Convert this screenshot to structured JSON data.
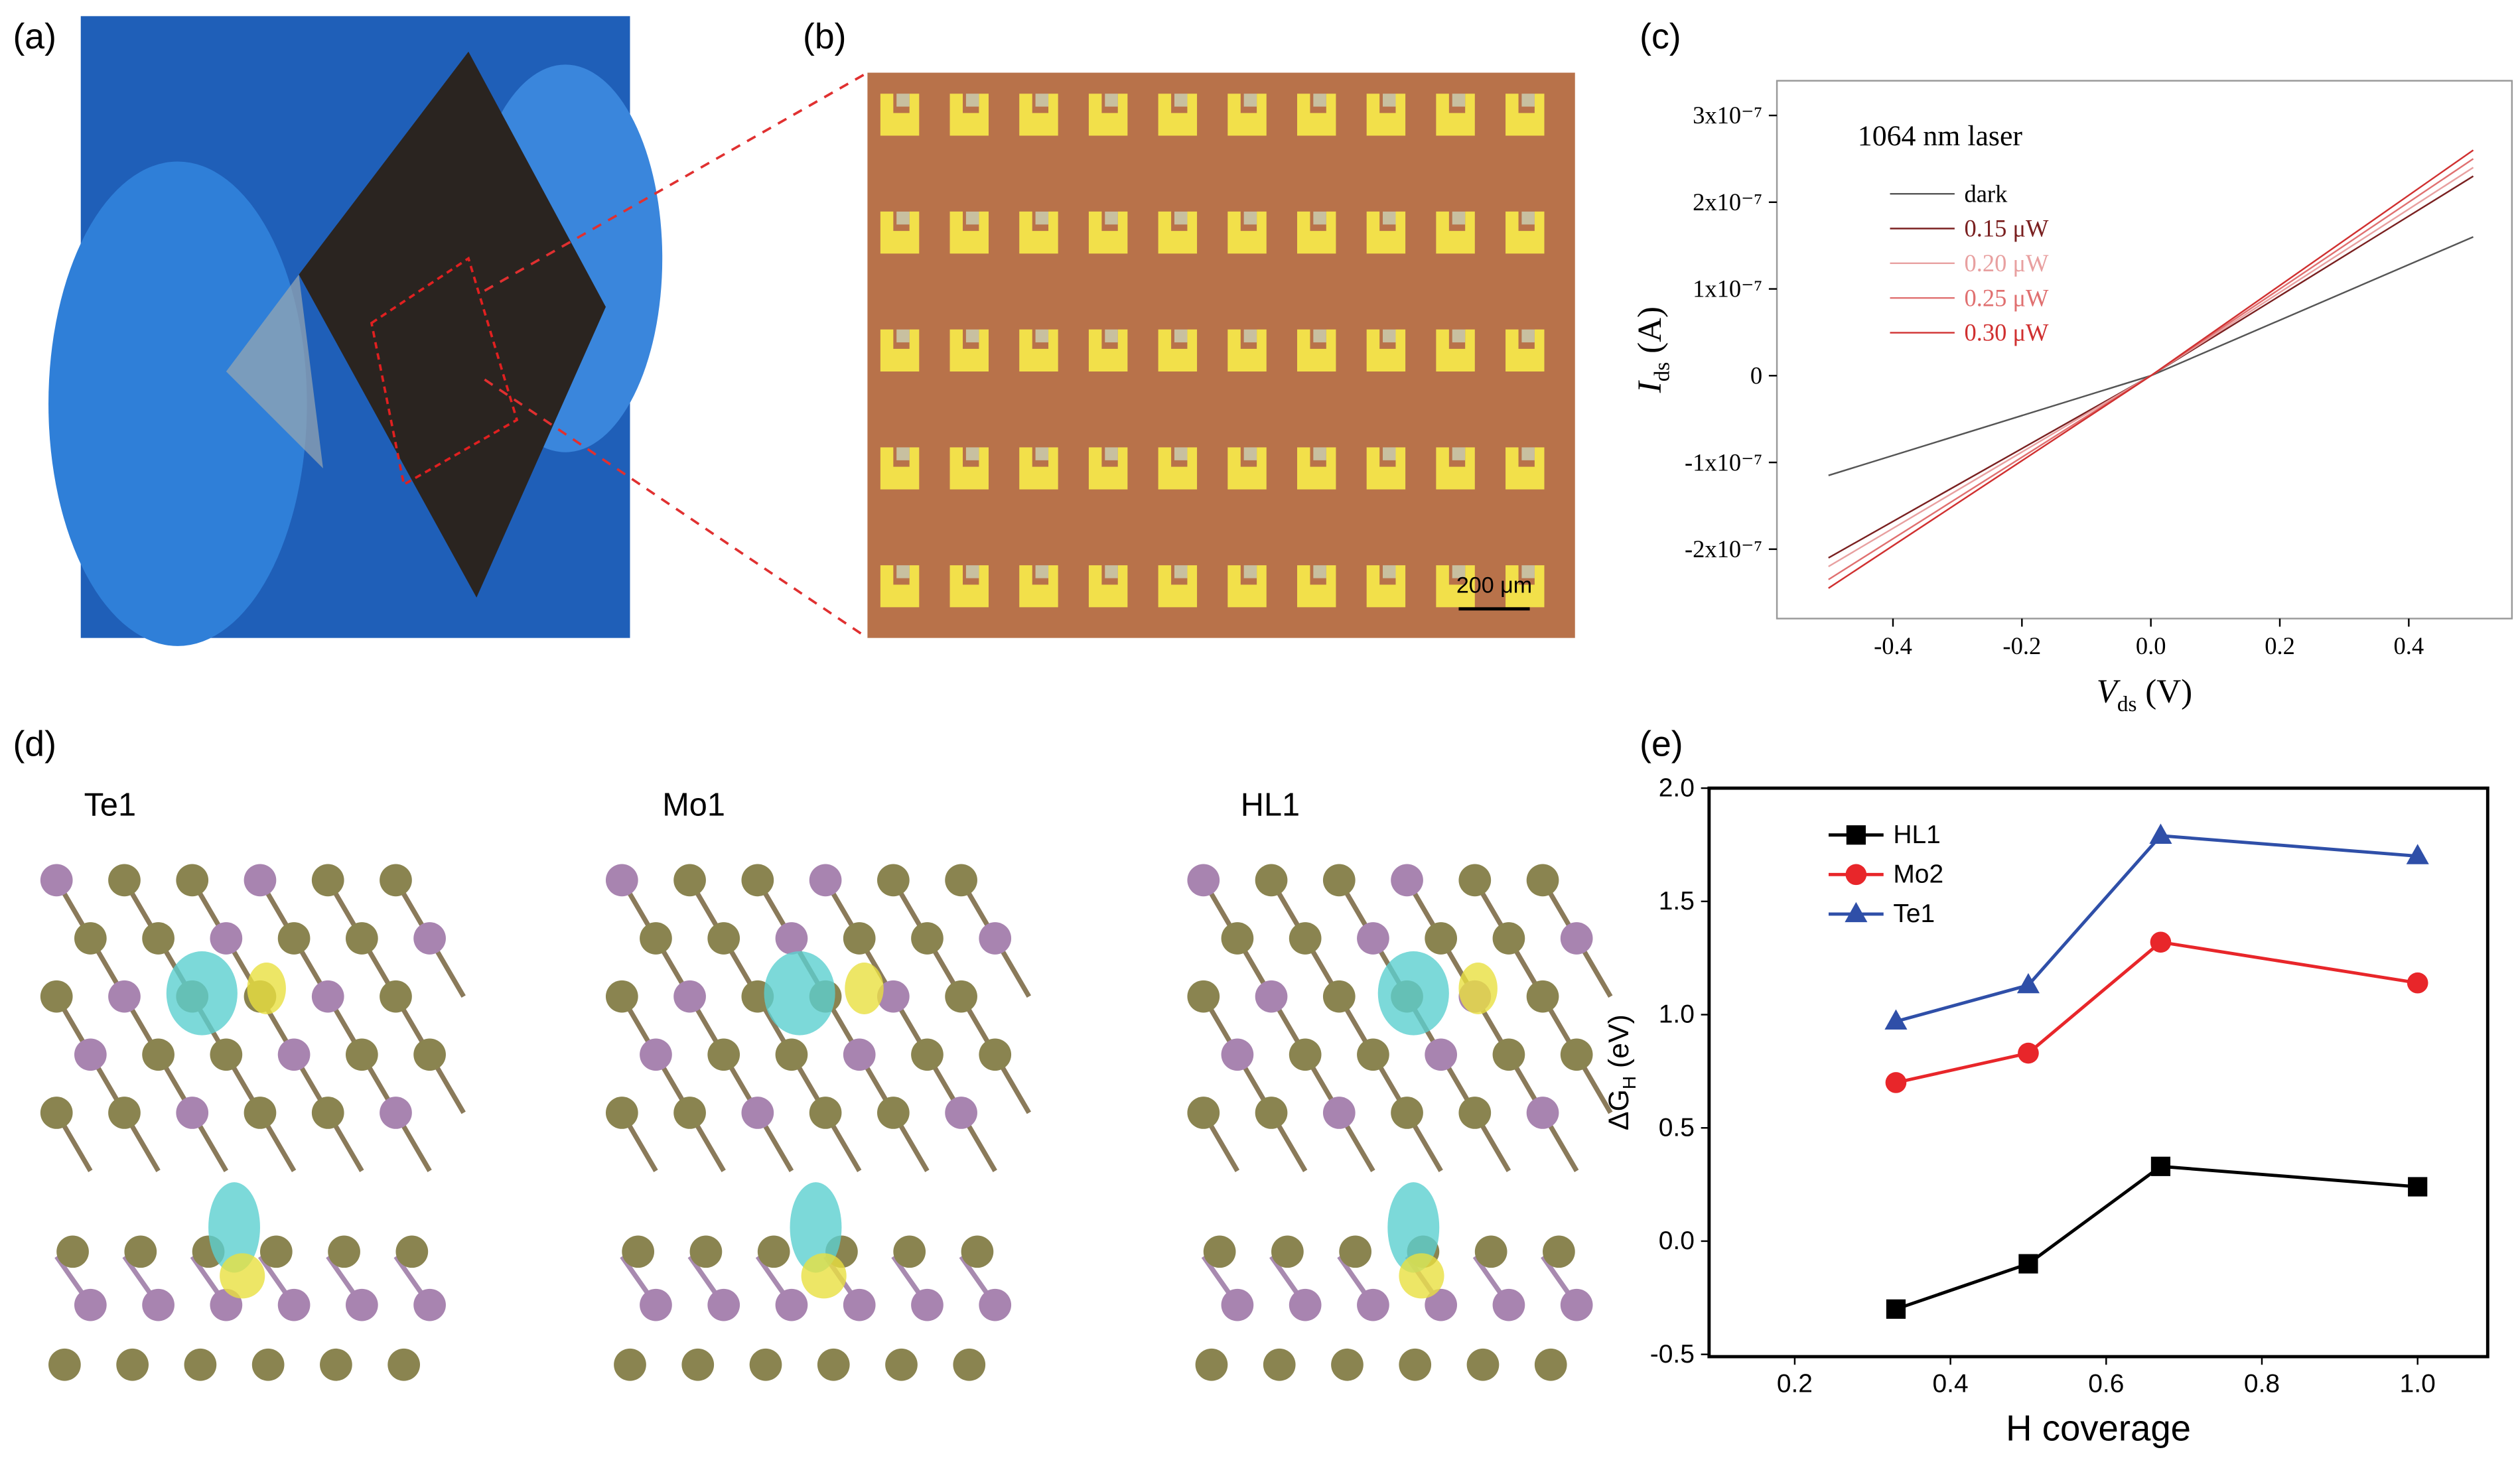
{
  "panels": {
    "labels": [
      "(a)",
      "(b)",
      "(c)",
      "(d)",
      "(e)"
    ],
    "scale_bar": "200 μm",
    "structures": [
      "Te1",
      "Mo1",
      "HL1"
    ]
  },
  "chart_data": [
    {
      "type": "line",
      "annotation": "1064 nm laser",
      "xlabel": {
        "symbol": "V",
        "subscript": "ds",
        "unit": " (V)"
      },
      "ylabel": {
        "symbol": "I",
        "subscript": "ds",
        "unit": " (A)"
      },
      "x": [
        -0.5,
        0,
        0.5
      ],
      "series": [
        {
          "name": "dark",
          "color": "#555555",
          "values": [
            -1.15e-07,
            0,
            1.6e-07
          ]
        },
        {
          "name": "0.15 μW",
          "color": "#7a2020",
          "values": [
            -2.1e-07,
            0,
            2.3e-07
          ]
        },
        {
          "name": "0.20 μW",
          "color": "#e8a0a0",
          "values": [
            -2.2e-07,
            0,
            2.4e-07
          ]
        },
        {
          "name": "0.25 μW",
          "color": "#e07070",
          "values": [
            -2.35e-07,
            0,
            2.5e-07
          ]
        },
        {
          "name": "0.30 μW",
          "color": "#d03030",
          "values": [
            -2.45e-07,
            0,
            2.6e-07
          ]
        }
      ],
      "xlim": [
        -0.58,
        0.56
      ],
      "xticks": [
        -0.4,
        -0.2,
        {
          "value": 0,
          "label": "0.0"
        },
        0.2,
        0.4
      ],
      "ylim": [
        -2.8e-07,
        3.4e-07
      ],
      "yticks": [
        {
          "value": -2e-07,
          "label": "-2x10⁻⁷"
        },
        {
          "value": -1e-07,
          "label": "-1x10⁻⁷"
        },
        0,
        {
          "value": 1e-07,
          "label": "1x10⁻⁷"
        },
        {
          "value": 2e-07,
          "label": "2x10⁻⁷"
        },
        {
          "value": 3e-07,
          "label": "3x10⁻⁷"
        }
      ],
      "legend": "upper left",
      "grid": false
    },
    {
      "type": "line",
      "xlabel": {
        "symbol": "H coverage",
        "subscript": "",
        "unit": ""
      },
      "ylabel": {
        "symbol": "ΔG",
        "subscript": "H",
        "unit": " (eV)"
      },
      "x": [
        0.33,
        0.5,
        0.67,
        1.0
      ],
      "series": [
        {
          "name": "HL1",
          "color": "#000000",
          "marker": "square",
          "values": [
            -0.3,
            -0.1,
            0.33,
            0.24
          ]
        },
        {
          "name": "Mo2",
          "color": "#e8262a",
          "marker": "circle",
          "values": [
            0.7,
            0.83,
            1.32,
            1.14
          ]
        },
        {
          "name": "Te1",
          "color": "#2f4fa8",
          "marker": "triangle",
          "values": [
            0.97,
            1.13,
            1.79,
            1.7
          ]
        }
      ],
      "xlim": [
        0.09,
        1.09
      ],
      "xticks": [
        0.2,
        0.4,
        0.6,
        0.8,
        {
          "value": 1,
          "label": "1.0"
        }
      ],
      "ylim": [
        -0.51,
        2.0
      ],
      "yticks": [
        {
          "value": -0.5,
          "label": "-0.5"
        },
        {
          "value": 0,
          "label": "0.0"
        },
        0.5,
        {
          "value": 1,
          "label": "1.0"
        },
        1.5,
        {
          "value": 2,
          "label": "2.0"
        }
      ],
      "legend": "upper left",
      "grid": false
    }
  ]
}
